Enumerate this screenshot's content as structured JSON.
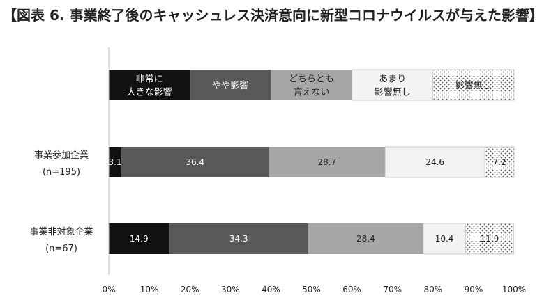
{
  "chart_data": {
    "type": "bar",
    "orientation": "horizontal",
    "stacked": true,
    "title": "【図表 6. 事業終了後のキャッシュレス決済意向に新型コロナウイルスが与えた影響】",
    "categories": [
      [
        "事業参加企業",
        "(n=195)"
      ],
      [
        "事業非対象企業",
        "(n=67)"
      ]
    ],
    "series": [
      {
        "name": [
          "非常に",
          "大きな影響"
        ],
        "values": [
          3.1,
          14.9
        ],
        "color": "#111111",
        "text_color": "#ffffff",
        "pattern": "solid"
      },
      {
        "name": [
          "やや影響"
        ],
        "values": [
          36.4,
          34.3
        ],
        "color": "#595959",
        "text_color": "#ffffff",
        "pattern": "solid"
      },
      {
        "name": [
          "どちらとも",
          "言えない"
        ],
        "values": [
          28.7,
          28.4
        ],
        "color": "#a6a6a6",
        "text_color": "#222222",
        "pattern": "solid"
      },
      {
        "name": [
          "あまり",
          "影響無し"
        ],
        "values": [
          24.6,
          10.4
        ],
        "color": "#f2f2f2",
        "text_color": "#222222",
        "pattern": "solid"
      },
      {
        "name": [
          "影響無し"
        ],
        "values": [
          7.2,
          11.9
        ],
        "color": "#ffffff",
        "text_color": "#222222",
        "pattern": "dots"
      }
    ],
    "value_labels": [
      [
        "3.1",
        "36.4",
        "28.7",
        "24.6",
        "7.2"
      ],
      [
        "14.9",
        "34.3",
        "28.4",
        "10.4",
        "11.9"
      ]
    ],
    "xlim": [
      0,
      100
    ],
    "xticks": [
      "0%",
      "10%",
      "20%",
      "30%",
      "40%",
      "50%",
      "60%",
      "70%",
      "80%",
      "90%",
      "100%"
    ],
    "legend_position": "top",
    "grid": false
  }
}
